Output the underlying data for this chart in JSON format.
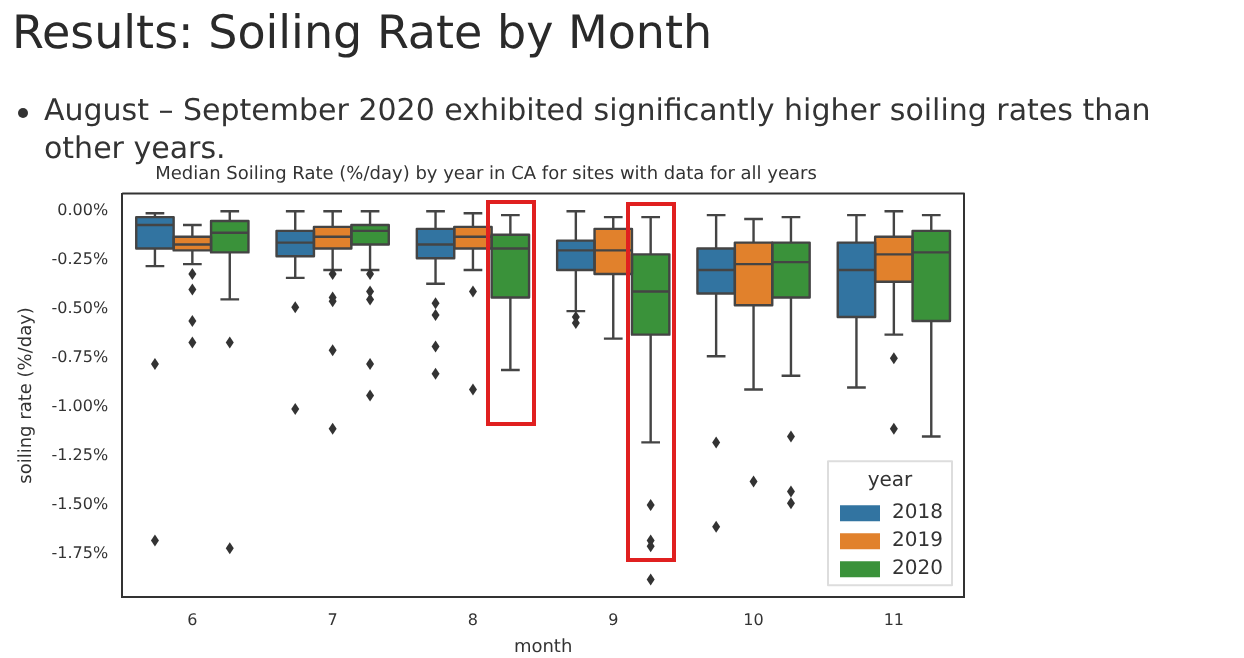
{
  "chart_data": {
    "type": "box",
    "title": "Results: Soiling Rate by Month",
    "subtitle": "Median Soiling Rate (%/day) by year in CA for sites with data for all years",
    "annotations": [
      "August – September 2020 exhibited significantly higher soiling rates than other years."
    ],
    "xlabel": "month",
    "ylabel": "soiling rate (%/day)",
    "legend_title": "year",
    "legend": "bottom right",
    "grid": false,
    "categories": [
      "6",
      "7",
      "8",
      "9",
      "10",
      "11"
    ],
    "ylim": [
      -1.97,
      0.09
    ],
    "yticks": [
      {
        "value": 0,
        "label": "0.00%"
      },
      {
        "value": -0.25,
        "label": "-0.25%"
      },
      {
        "value": -0.5,
        "label": "-0.50%"
      },
      {
        "value": -0.75,
        "label": "-0.75%"
      },
      {
        "value": -1,
        "label": "-1.00%"
      },
      {
        "value": -1.25,
        "label": "-1.25%"
      },
      {
        "value": -1.5,
        "label": "-1.50%"
      },
      {
        "value": -1.75,
        "label": "-1.75%"
      }
    ],
    "series": [
      {
        "name": "2018",
        "color": "#3274a1",
        "boxes": [
          {
            "low": -0.28,
            "q1": -0.19,
            "median": -0.07,
            "q3": -0.03,
            "high": -0.01,
            "outliers": [
              -0.78,
              -1.68
            ]
          },
          {
            "low": -0.34,
            "q1": -0.23,
            "median": -0.16,
            "q3": -0.1,
            "high": 0,
            "outliers": [
              -0.49,
              -1.01
            ]
          },
          {
            "low": -0.37,
            "q1": -0.24,
            "median": -0.17,
            "q3": -0.09,
            "high": 0,
            "outliers": [
              -0.47,
              -0.53,
              -0.69,
              -0.83
            ]
          },
          {
            "low": -0.51,
            "q1": -0.3,
            "median": -0.2,
            "q3": -0.15,
            "high": 0,
            "outliers": [
              -0.54,
              -0.57
            ]
          },
          {
            "low": -0.74,
            "q1": -0.42,
            "median": -0.3,
            "q3": -0.19,
            "high": -0.02,
            "outliers": [
              -1.18,
              -1.61
            ]
          },
          {
            "low": -0.9,
            "q1": -0.54,
            "median": -0.3,
            "q3": -0.16,
            "high": -0.02
          }
        ]
      },
      {
        "name": "2019",
        "color": "#e1812c",
        "boxes": [
          {
            "low": -0.27,
            "q1": -0.2,
            "median": -0.17,
            "q3": -0.13,
            "high": -0.07,
            "outliers": [
              -0.32,
              -0.4,
              -0.56,
              -0.67
            ]
          },
          {
            "low": -0.3,
            "q1": -0.19,
            "median": -0.13,
            "q3": -0.08,
            "high": 0,
            "outliers": [
              -0.32,
              -0.44,
              -0.46,
              -0.71,
              -1.11
            ]
          },
          {
            "low": -0.3,
            "q1": -0.19,
            "median": -0.13,
            "q3": -0.08,
            "high": -0.01,
            "outliers": [
              -0.41,
              -0.91
            ]
          },
          {
            "low": -0.65,
            "q1": -0.32,
            "median": -0.2,
            "q3": -0.09,
            "high": -0.03
          },
          {
            "low": -0.91,
            "q1": -0.48,
            "median": -0.27,
            "q3": -0.16,
            "high": -0.04,
            "outliers": [
              -1.38
            ]
          },
          {
            "low": -0.63,
            "q1": -0.36,
            "median": -0.22,
            "q3": -0.13,
            "high": 0,
            "outliers": [
              -0.75,
              -1.11
            ]
          }
        ]
      },
      {
        "name": "2020",
        "color": "#3a923a",
        "boxes": [
          {
            "low": -0.45,
            "q1": -0.21,
            "median": -0.11,
            "q3": -0.05,
            "high": 0,
            "outliers": [
              -0.67,
              -1.72
            ]
          },
          {
            "low": -0.3,
            "q1": -0.17,
            "median": -0.1,
            "q3": -0.07,
            "high": 0,
            "outliers": [
              -0.32,
              -0.41,
              -0.45,
              -0.78,
              -0.94
            ]
          },
          {
            "low": -0.81,
            "q1": -0.44,
            "median": -0.19,
            "q3": -0.12,
            "high": -0.02
          },
          {
            "low": -1.18,
            "q1": -0.63,
            "median": -0.41,
            "q3": -0.22,
            "high": -0.03,
            "outliers": [
              -1.5,
              -1.68,
              -1.71,
              -1.88
            ]
          },
          {
            "low": -0.84,
            "q1": -0.44,
            "median": -0.26,
            "q3": -0.16,
            "high": -0.03,
            "outliers": [
              -1.15,
              -1.43,
              -1.49
            ]
          },
          {
            "low": -1.15,
            "q1": -0.56,
            "median": -0.21,
            "q3": -0.1,
            "high": -0.02
          }
        ]
      }
    ]
  }
}
